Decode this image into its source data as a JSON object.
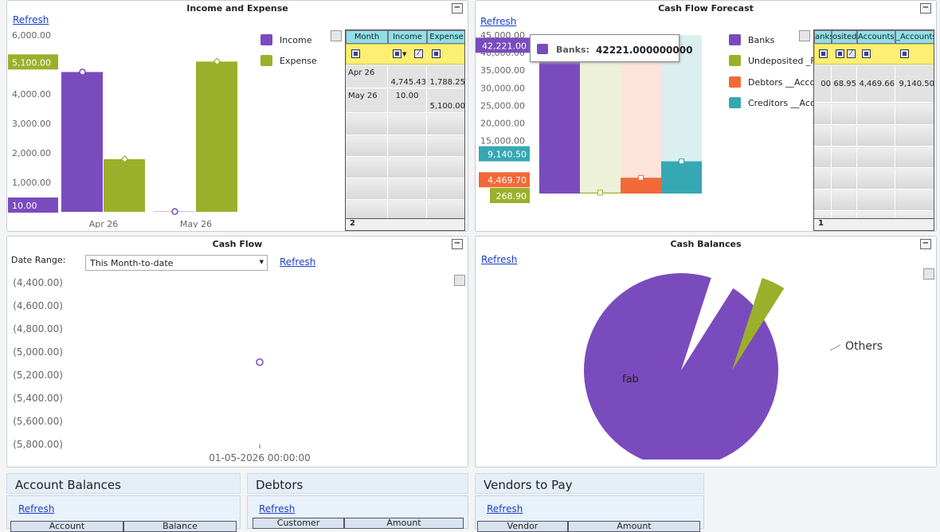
{
  "panels": {
    "income_expense": {
      "title": "Income and Expense",
      "refresh": "Refresh"
    },
    "forecast": {
      "title": "Cash Flow Forecast",
      "refresh": "Refresh"
    },
    "cashflow": {
      "title": "Cash Flow",
      "refresh": "Refresh",
      "date_range_label": "Date Range:",
      "date_range_value": "This Month-to-date"
    },
    "balances": {
      "title": "Cash Balances",
      "refresh": "Refresh"
    },
    "account_balances": {
      "title": "Account Balances",
      "refresh": "Refresh",
      "cols": [
        "Account",
        "Balance"
      ]
    },
    "debtors": {
      "title": "Debtors",
      "refresh": "Refresh",
      "cols": [
        "Customer",
        "Amount"
      ]
    },
    "vendors": {
      "title": "Vendors to Pay",
      "refresh": "Refresh",
      "cols": [
        "Vendor",
        "Amount"
      ]
    }
  },
  "colors": {
    "income": "#7a4bbd",
    "expense": "#9bb02a",
    "debtors": "#f26a38",
    "creditors": "#35a8b4"
  },
  "ie_grid": {
    "headers": [
      "Month",
      "Income",
      "Expense"
    ],
    "rows": [
      [
        "Apr 26",
        "4,745.43",
        "1,788.25"
      ],
      [
        "May 26",
        "10.00",
        "5,100.00"
      ]
    ],
    "footer": "2"
  },
  "fc_grid": {
    "headers": [
      "anks",
      "osited_",
      "Accounts_F",
      "_Accounts"
    ],
    "row": [
      "00",
      "68.95",
      "4,469.66",
      "9,140.50"
    ],
    "footer": "1"
  },
  "chart_data": [
    {
      "type": "bar",
      "title": "Income and Expense",
      "categories": [
        "Apr 26",
        "May 26"
      ],
      "series": [
        {
          "name": "Income",
          "values": [
            4745.43,
            10.0
          ]
        },
        {
          "name": "Expense",
          "values": [
            1788.25,
            5100.0
          ]
        }
      ],
      "ylim": [
        0,
        6000
      ],
      "yticks": [
        "6,000.00",
        "5,000.00",
        "4,000.00",
        "3,000.00",
        "2,000.00",
        "1,000.00"
      ],
      "callouts": [
        "5,100.00",
        "10.00"
      ],
      "legend": "top-right"
    },
    {
      "type": "bar",
      "title": "Cash Flow Forecast",
      "series": [
        {
          "name": "Banks",
          "values": [
            42221.0
          ]
        },
        {
          "name": "Undeposited _Fu",
          "values": [
            268.9
          ]
        },
        {
          "name": "Debtors __Accou",
          "values": [
            4469.7
          ]
        },
        {
          "name": "Creditors __Acco",
          "values": [
            9140.5
          ]
        }
      ],
      "ylim": [
        0,
        45000
      ],
      "yticks": [
        "45,000.00",
        "40,000.00",
        "35,000.00",
        "30,000.00",
        "25,000.00",
        "20,000.00",
        "15,000.00"
      ],
      "callouts": [
        "42,221.00",
        "9,140.50",
        "4,469.70",
        "268.90"
      ],
      "tooltip": {
        "name": "Banks:",
        "value": "42221.000000000"
      },
      "legend": "right"
    },
    {
      "type": "line",
      "title": "Cash Flow",
      "yticks": [
        "(4,400.00)",
        "(4,600.00)",
        "(4,800.00)",
        "(5,000.00)",
        "(5,200.00)",
        "(5,400.00)",
        "(5,600.00)",
        "(5,800.00)"
      ],
      "x": [
        "01-05-2026 00:00:00"
      ],
      "values": [
        -5088
      ]
    },
    {
      "type": "pie",
      "title": "Cash Balances",
      "labels": [
        "fab",
        "Others"
      ],
      "values": [
        96,
        4
      ]
    }
  ]
}
